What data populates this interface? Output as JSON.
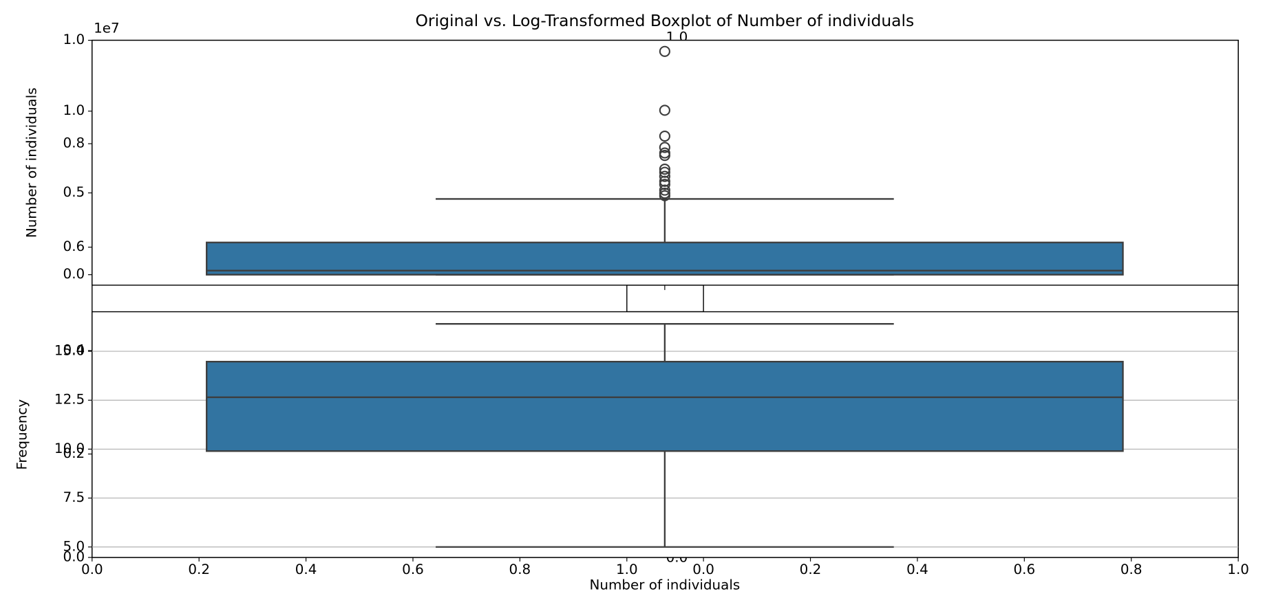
{
  "chart_data": [
    {
      "type": "axes",
      "xlim": [
        0,
        1
      ],
      "xticks": [
        {
          "value": 0,
          "label": "0.0"
        },
        {
          "value": 0.2,
          "label": "0.2"
        },
        {
          "value": 0.4,
          "label": "0.4"
        },
        {
          "value": 0.6,
          "label": "0.6"
        },
        {
          "value": 0.8,
          "label": "0.8"
        },
        {
          "value": 1,
          "label": "1.0"
        }
      ],
      "ylim": [
        0,
        1
      ],
      "yticks": [
        {
          "value": 0,
          "label": "0.0"
        },
        {
          "value": 0.2,
          "label": "0.2"
        },
        {
          "value": 0.4,
          "label": "0.4"
        },
        {
          "value": 0.6,
          "label": "0.6"
        },
        {
          "value": 0.8,
          "label": "0.8"
        },
        {
          "value": 1,
          "label": "1.0"
        }
      ]
    },
    {
      "type": "axes",
      "xlim": [
        0,
        1
      ],
      "xticks": [
        {
          "value": 0,
          "label": "0.0"
        },
        {
          "value": 0.2,
          "label": "0.2"
        },
        {
          "value": 0.4,
          "label": "0.4"
        },
        {
          "value": 0.6,
          "label": "0.6"
        },
        {
          "value": 0.8,
          "label": "0.8"
        },
        {
          "value": 1,
          "label": "1.0"
        }
      ]
    },
    {
      "type": "axes",
      "ylim": [
        0,
        1
      ],
      "yticks": [
        {
          "value": 0,
          "label": "0.0"
        },
        {
          "value": 1,
          "label": "1.0"
        }
      ]
    },
    {
      "type": "box",
      "title": "Original vs. Log-Transformed Boxplot of Number of individuals",
      "ylabel": "Number of individuals",
      "offset_label": "1e7",
      "ylim": [
        -0.064,
        1.433
      ],
      "yticks": [
        {
          "value": 0,
          "label": "0.0"
        },
        0.5,
        {
          "value": 1,
          "label": "1.0"
        }
      ],
      "color": "#3274a1",
      "grid": false,
      "whislo": 0,
      "q1": 0,
      "median": 0.025,
      "q3": 0.197,
      "whishi": 0.463,
      "fliers": [
        1.365,
        1.005,
        0.847,
        0.778,
        0.744,
        0.729,
        0.645,
        0.626,
        0.601,
        0.571,
        0.552,
        0.517,
        0.498,
        0.483
      ]
    },
    {
      "type": "box",
      "ylabel": "Frequency",
      "xlabel": "Number of individuals",
      "ylim": [
        4.465,
        17.02
      ],
      "yticks": [
        {
          "value": 5,
          "label": "5.0"
        },
        7.5,
        {
          "value": 10,
          "label": "10.0"
        },
        12.5,
        {
          "value": 15,
          "label": "15.0"
        }
      ],
      "color": "#3274a1",
      "grid": true,
      "whislo": 5.0,
      "q1": 9.9,
      "median": 12.65,
      "q3": 14.47,
      "whishi": 16.4,
      "fliers": []
    }
  ]
}
